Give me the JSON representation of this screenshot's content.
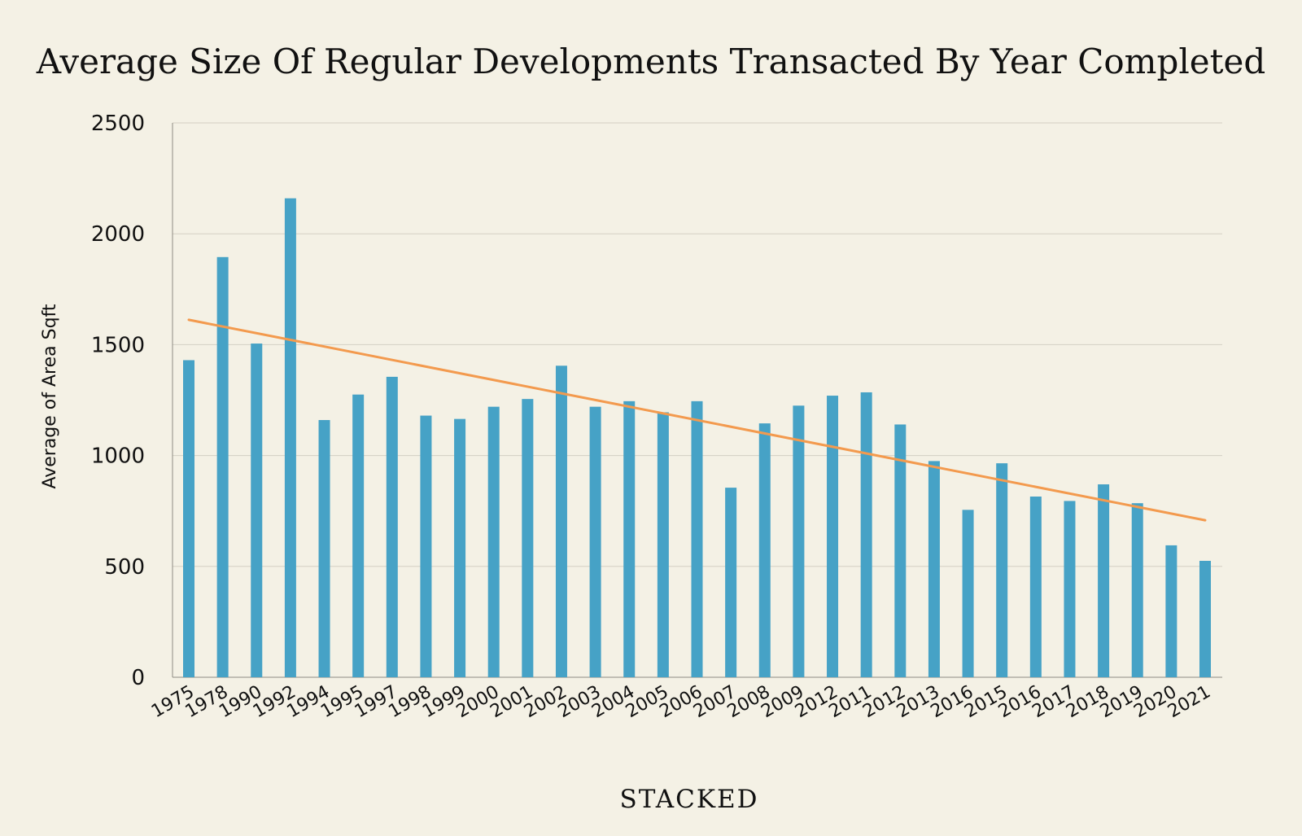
{
  "chart_data": {
    "type": "bar",
    "title": "Average Size Of Regular Developments Transacted By Year Completed",
    "xlabel": "",
    "ylabel": "Average of Area Sqft",
    "ylim": [
      0,
      2500
    ],
    "yticks": [
      0,
      500,
      1000,
      1500,
      2000,
      2500
    ],
    "grid": true,
    "categories": [
      "1975",
      "1978",
      "1990",
      "1992",
      "1994",
      "1995",
      "1997",
      "1998",
      "1999",
      "2000",
      "2001",
      "2002",
      "2003",
      "2004",
      "2005",
      "2006",
      "2007",
      "2008",
      "2009",
      "2012",
      "2011",
      "2012",
      "2013",
      "2016",
      "2015",
      "2016",
      "2017",
      "2018",
      "2019",
      "2020",
      "2021"
    ],
    "series": [
      {
        "name": "Average of Area Sqft",
        "color": "#46A2C6",
        "values": [
          1430,
          1895,
          1505,
          2160,
          1160,
          1275,
          1355,
          1180,
          1165,
          1220,
          1255,
          1405,
          1220,
          1245,
          1195,
          1245,
          855,
          1145,
          1225,
          1270,
          1285,
          1140,
          975,
          755,
          965,
          815,
          795,
          870,
          785,
          595,
          525
        ]
      }
    ],
    "trendline": {
      "type": "linear",
      "color": "#F39A4E",
      "start_value": 1612,
      "end_value": 708
    },
    "brand": "STACKED",
    "colors": {
      "background": "#F4F1E5",
      "grid": "#D3CFC3",
      "axis": "#8E8B82"
    }
  }
}
